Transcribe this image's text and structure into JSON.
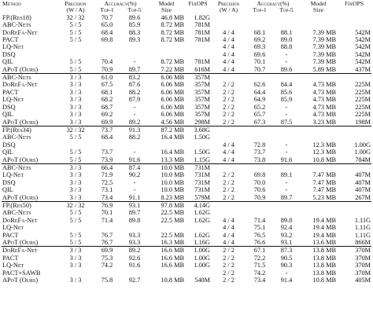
{
  "header": {
    "method": "Method",
    "precision": "Precision",
    "wa": "(W / A)",
    "accuracy": "Accuracy(%)",
    "top1": "Top-1",
    "top5": "Top-5",
    "model": "Model",
    "size": "Size",
    "fixops": "FixOPS",
    "precision2": "Precision",
    "wa2": "(W / A)",
    "accuracy2": "Accuracy(%)",
    "top1_2": "Top-1",
    "top5_2": "Top-5",
    "model2": "Model",
    "size2": "Size",
    "fixops2": "FixOPS"
  },
  "rows": [
    {
      "m": "FP.(Res18)",
      "p": "32 / 32",
      "t1": "70.7",
      "t5": "89.6",
      "s": "46.8 MB",
      "f": "1.82G",
      "p2": "",
      "a1": "",
      "a5": "",
      "s2": "",
      "f2": "",
      "bold": false,
      "sep": false,
      "top": false
    },
    {
      "m": "ABC-Nets",
      "p": "5 / 5",
      "t1": "65.0",
      "t5": "85.9",
      "s": "8.72 MB",
      "f": "781M",
      "p2": "",
      "a1": "",
      "a5": "",
      "s2": "",
      "f2": "",
      "bold": false,
      "sep": false,
      "top": false
    },
    {
      "m": "DoReFa-Net",
      "p": "5 / 5",
      "t1": "68.4",
      "t5": "88.3",
      "s": "8.72 MB",
      "f": "781M",
      "p2": "4 / 4",
      "a1": "68.1",
      "a5": "88.1",
      "s2": "7.39 MB",
      "f2": "542M",
      "bold": false,
      "sep": false,
      "top": false
    },
    {
      "m": "PACT",
      "p": "5 / 5",
      "t1": "69.8",
      "t5": "89.3",
      "s": "8.72 MB",
      "f": "781M",
      "p2": "4 / 4",
      "a1": "69.2",
      "a5": "89.0",
      "s2": "7.39 MB",
      "f2": "542M",
      "bold": false,
      "sep": false,
      "top": false
    },
    {
      "m": "LQ-Net",
      "p": "",
      "t1": "",
      "t5": "",
      "s": "",
      "f": "",
      "p2": "4 / 4",
      "a1": "69.3",
      "a5": "88.8",
      "s2": "7.39 MB",
      "f2": "542M",
      "bold": false,
      "sep": false,
      "top": false
    },
    {
      "m": "DSQ",
      "p": "",
      "t1": "",
      "t5": "",
      "s": "",
      "f": "",
      "p2": "4 / 4",
      "a1": "69.6",
      "a5": "-",
      "s2": "7.39 MB",
      "f2": "542M",
      "bold": false,
      "sep": false,
      "top": false
    },
    {
      "m": "QIL",
      "p": "5 / 5",
      "t1": "70.4",
      "t5": "-",
      "s": "8.72 MB",
      "f": "781M",
      "p2": "4 / 4",
      "a1": "70.1",
      "a5": "-",
      "s2": "7.39 MB",
      "f2": "542M",
      "bold": false,
      "sep": false,
      "top": false
    },
    {
      "m": "APoT (Ours)",
      "p": "5 / 5",
      "t1": "70.9",
      "t5": "89.7",
      "s": "7.22 MB",
      "f": "616M",
      "p2": "4 / 4",
      "a1": "70.7",
      "a5": "89.6",
      "s2": "5.89 MB",
      "f2": "437M",
      "bold": true,
      "sep": true,
      "top": false
    },
    {
      "m": "ABC-Nets",
      "p": "3 / 3",
      "t1": "61.0",
      "t5": "83.2",
      "s": "6.06 MB",
      "f": "357M",
      "p2": "",
      "a1": "",
      "a5": "",
      "s2": "",
      "f2": "",
      "bold": false,
      "sep": false,
      "top": true
    },
    {
      "m": "DoReFa-Net",
      "p": "3 / 3",
      "t1": "67.5",
      "t5": "87.6",
      "s": "6.06 MB",
      "f": "357M",
      "p2": "2 / 2",
      "a1": "62.6",
      "a5": "84.4",
      "s2": "4.73 MB",
      "f2": "225M",
      "bold": false,
      "sep": false,
      "top": false
    },
    {
      "m": "PACT",
      "p": "3 / 3",
      "t1": "68.1",
      "t5": "88.2",
      "s": "6.06 MB",
      "f": "357M",
      "p2": "2 / 2",
      "a1": "64.4",
      "a5": "85.6",
      "s2": "4.73 MB",
      "f2": "225M",
      "bold": false,
      "sep": false,
      "top": false
    },
    {
      "m": "LQ-Net",
      "p": "3 / 3",
      "t1": "68.2",
      "t5": "87.9",
      "s": "6.06 MB",
      "f": "357M",
      "p2": "2 / 2",
      "a1": "64.9",
      "a5": "85.9",
      "s2": "4.73 MB",
      "f2": "225M",
      "bold": false,
      "sep": false,
      "top": false
    },
    {
      "m": "DSQ",
      "p": "3 / 3",
      "t1": "68.7",
      "t5": "-",
      "s": "6.06 MB",
      "f": "357M",
      "p2": "2 / 2",
      "a1": "65.2",
      "a5": "-",
      "s2": "4.73 MB",
      "f2": "225M",
      "bold": false,
      "sep": false,
      "top": false
    },
    {
      "m": "QIL",
      "p": "3 / 3",
      "t1": "69.2",
      "t5": "-",
      "s": "6.06 MB",
      "f": "357M",
      "p2": "2 / 2",
      "a1": "65.7",
      "a5": "-",
      "s2": "4.73 MB",
      "f2": "225M",
      "bold": false,
      "sep": false,
      "top": false
    },
    {
      "m": "",
      "p": "",
      "t1": "",
      "t5": "",
      "s": "",
      "f": "",
      "p2": "",
      "a1": "",
      "a5": "",
      "s2": "",
      "f2": "",
      "bold": false,
      "sep": false,
      "top": false
    },
    {
      "m": "APoT (Ours)",
      "p": "3 / 3",
      "t1": "69.9",
      "t5": "89.2",
      "s": "4.56 MB",
      "f": "298M",
      "p2": "2 / 2",
      "a1": "67.3",
      "a5": "87.5",
      "s2": "3.23 MB",
      "f2": "198M",
      "bold": true,
      "sep": true,
      "top": false
    },
    {
      "m": "FP.(Res34)",
      "p": "32 / 32",
      "t1": "73.7",
      "t5": "91.3",
      "s": "87.2 MB",
      "f": "3.68G",
      "p2": "",
      "a1": "",
      "a5": "",
      "s2": "",
      "f2": "",
      "bold": false,
      "sep": false,
      "top": true
    },
    {
      "m": "ABC-Nets",
      "p": "5 / 5",
      "t1": "68.4",
      "t5": "88.2",
      "s": "16.4 MB",
      "f": "1.50G",
      "p2": "",
      "a1": "",
      "a5": "",
      "s2": "",
      "f2": "",
      "bold": false,
      "sep": false,
      "top": false
    },
    {
      "m": "DSQ",
      "p": "",
      "t1": "",
      "t5": "",
      "s": "",
      "f": "",
      "p2": "4 / 4",
      "a1": "72.8",
      "a5": "-",
      "s2": "12.3 MB",
      "f2": "1.00G",
      "bold": false,
      "sep": false,
      "top": false
    },
    {
      "m": "QIL",
      "p": "5 / 5",
      "t1": "73.7",
      "t5": "-",
      "s": "16.4 MB",
      "f": "1.50G",
      "p2": "4 / 4",
      "a1": "73.7",
      "a5": "-",
      "s2": "12.3 MB",
      "f2": "1.00G",
      "bold": false,
      "sep": false,
      "top": false
    },
    {
      "m": "APoT (Ours)",
      "p": "5 / 5",
      "t1": "73.9",
      "t5": "91.6",
      "s": "13.3 MB",
      "f": "1.15G",
      "p2": "4 / 4",
      "a1": "73.8",
      "a5": "91.6",
      "s2": "10.8 MB",
      "f2": "784M",
      "bold": true,
      "sep": true,
      "top": false
    },
    {
      "m": "ABC-Nets",
      "p": "3 / 3",
      "t1": "66.4",
      "t5": "87.4",
      "s": "10.0 MB",
      "f": "731M",
      "p2": "",
      "a1": "",
      "a5": "",
      "s2": "",
      "f2": "",
      "bold": false,
      "sep": false,
      "top": true
    },
    {
      "m": "LQ-Net",
      "p": "3 / 3",
      "t1": "71.9",
      "t5": "90.2",
      "s": "10.0 MB",
      "f": "731M",
      "p2": "2 / 2",
      "a1": "69.8",
      "a5": "89.1",
      "s2": "7.47 MB",
      "f2": "407M",
      "bold": false,
      "sep": false,
      "top": false
    },
    {
      "m": "DSQ",
      "p": "3 / 3",
      "t1": "72.5",
      "t5": "-",
      "s": "10.0 MB",
      "f": "731M",
      "p2": "2 / 2",
      "a1": "70.0",
      "a5": "-",
      "s2": "7.47 MB",
      "f2": "407M",
      "bold": false,
      "sep": false,
      "top": false
    },
    {
      "m": "QIL",
      "p": "3 / 3",
      "t1": "73.1",
      "t5": "-",
      "s": "10.0 MB",
      "f": "731M",
      "p2": "2 / 2",
      "a1": "70.6",
      "a5": "-",
      "s2": "7.47 MB",
      "f2": "407M",
      "bold": false,
      "sep": false,
      "top": false
    },
    {
      "m": "APoT (Ours)",
      "p": "3 / 3",
      "t1": "73.4",
      "t5": "91.1",
      "s": "8.23 MB",
      "f": "579M",
      "p2": "2 / 2",
      "a1": "70.9",
      "a5": "89.7",
      "s2": "5.23 MB",
      "f2": "267M",
      "bold": true,
      "sep": true,
      "top": false
    },
    {
      "m": "FP.(Res50)",
      "p": "32 / 32",
      "t1": "76.9",
      "t5": "93.1",
      "s": "97.8 MB",
      "f": "4.14G",
      "p2": "",
      "a1": "",
      "a5": "",
      "s2": "",
      "f2": "",
      "bold": false,
      "sep": false,
      "top": true
    },
    {
      "m": "ABC-Nets",
      "p": "5 / 5",
      "t1": "70.1",
      "t5": "89.7",
      "s": "22.5 MB",
      "f": "1.62G",
      "p2": "",
      "a1": "",
      "a5": "",
      "s2": "",
      "f2": "",
      "bold": false,
      "sep": false,
      "top": false
    },
    {
      "m": "DoReFa-Net",
      "p": "5 / 5",
      "t1": "71.4",
      "t5": "89.8",
      "s": "22.5 MB",
      "f": "1.62G",
      "p2": "4 / 4",
      "a1": "71.4",
      "a5": "89.8",
      "s2": "19.4 MB",
      "f2": "1.11G",
      "bold": false,
      "sep": false,
      "top": false
    },
    {
      "m": "LQ-Net",
      "p": "",
      "t1": "",
      "t5": "",
      "s": "",
      "f": "",
      "p2": "4 / 4",
      "a1": "75.1",
      "a5": "92.4",
      "s2": "19.4 MB",
      "f2": "1.11G",
      "bold": false,
      "sep": false,
      "top": false
    },
    {
      "m": "PACT",
      "p": "5 / 5",
      "t1": "76.7",
      "t5": "93.3",
      "s": "22.5 MB",
      "f": "1.62G",
      "p2": "4 / 4",
      "a1": "76.5",
      "a5": "93.2",
      "s2": "19.4 MB",
      "f2": "1.11G",
      "bold": false,
      "sep": false,
      "top": false
    },
    {
      "m": "APoT (Ours)",
      "p": "5 / 5",
      "t1": "76.7",
      "t5": "93.3",
      "s": "16.3 MB",
      "f": "1.16G",
      "p2": "4 / 4",
      "a1": "76.6",
      "a5": "93.1",
      "s2": "13.6 MB",
      "f2": "866M",
      "bold": true,
      "sep": true,
      "top": false
    },
    {
      "m": "DoReFa-Net",
      "p": "3 / 3",
      "t1": "69.9",
      "t5": "89.2",
      "s": "16.6 MB",
      "f": "1.00G",
      "p2": "2 / 2",
      "a1": "67.1",
      "a5": "87.3",
      "s2": "13.8 MB",
      "f2": "370M",
      "bold": false,
      "sep": false,
      "top": true
    },
    {
      "m": "PACT",
      "p": "3 / 3",
      "t1": "75.3",
      "t5": "92.6",
      "s": "16.6 MB",
      "f": "1.00G",
      "p2": "2 / 2",
      "a1": "72.2",
      "a5": "90.5",
      "s2": "13.8 MB",
      "f2": "370M",
      "bold": false,
      "sep": false,
      "top": false
    },
    {
      "m": "LQ-Net",
      "p": "3 / 3",
      "t1": "74.2",
      "t5": "91.6",
      "s": "16.6 MB",
      "f": "1.00G",
      "p2": "2 / 2",
      "a1": "71.5",
      "a5": "90.3",
      "s2": "13.8 MB",
      "f2": "370M",
      "bold": false,
      "sep": false,
      "top": false
    },
    {
      "m": "PACT+SAWB",
      "p": "",
      "t1": "",
      "t5": "",
      "s": "",
      "f": "",
      "p2": "2 / 2",
      "a1": "74.2",
      "a5": "-",
      "s2": "13.8 MB",
      "f2": "370M",
      "bold": false,
      "sep": false,
      "top": false
    },
    {
      "m": "APoT (Ours)",
      "p": "3 / 3",
      "t1": "75.8",
      "t5": "92.7",
      "s": "10.8 MB",
      "f": "540M",
      "p2": "2 / 2",
      "a1": "73.4",
      "a5": "91.4",
      "s2": "10.8 MB",
      "f2": "405M",
      "bold": true,
      "sep": false,
      "top": false
    }
  ]
}
